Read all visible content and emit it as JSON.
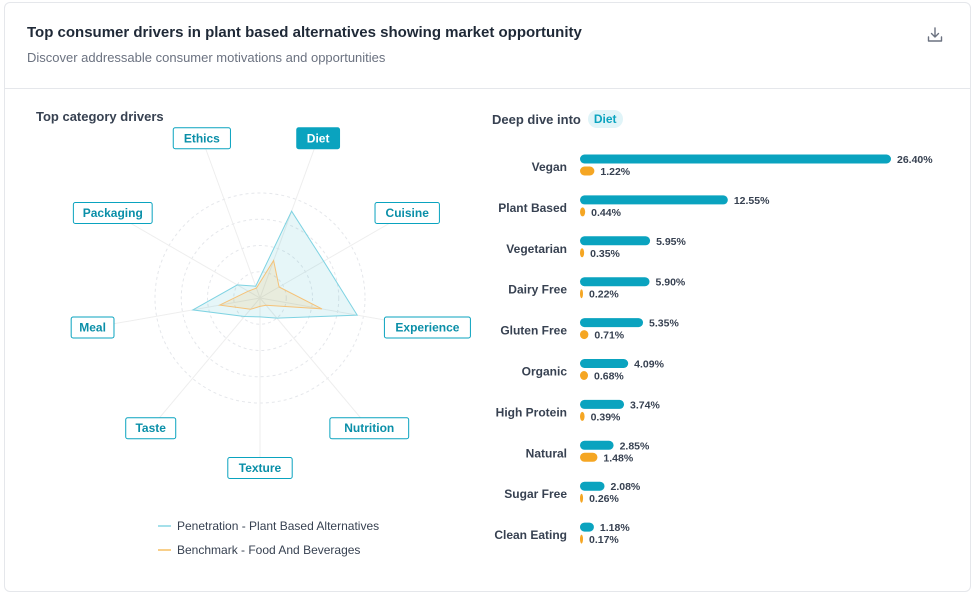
{
  "header": {
    "title": "Top consumer drivers in plant based alternatives showing market opportunity",
    "subtitle": "Discover addressable consumer motivations and opportunities"
  },
  "icons": {
    "download": "download-icon"
  },
  "colors": {
    "primary": "#0aa3bf",
    "benchmark": "#f5a623"
  },
  "chart_data": [
    {
      "type": "radar",
      "title": "Top category drivers",
      "axes": [
        "Diet",
        "Cuisine",
        "Experience",
        "Nutrition",
        "Texture",
        "Taste",
        "Meal",
        "Packaging",
        "Ethics"
      ],
      "selected_axis": "Diet",
      "rmax": 10,
      "series": [
        {
          "name": "Penetration - Plant Based Alternatives",
          "color": "#0aa3bf",
          "values": [
            8.8,
            7.0,
            9.4,
            2.5,
            1.8,
            2.3,
            6.5,
            2.5,
            1.2
          ]
        },
        {
          "name": "Benchmark - Food And Beverages",
          "color": "#f5a623",
          "values": [
            3.8,
            2.1,
            6.0,
            0.9,
            0.8,
            1.4,
            3.9,
            1.3,
            1.0
          ]
        }
      ]
    },
    {
      "type": "bar",
      "orientation": "horizontal",
      "title": "Deep dive into",
      "badge": "Diet",
      "categories": [
        "Vegan",
        "Plant Based",
        "Vegetarian",
        "Dairy Free",
        "Gluten Free",
        "Organic",
        "High Protein",
        "Natural",
        "Sugar Free",
        "Clean Eating"
      ],
      "series": [
        {
          "name": "Penetration - Plant Based Alternatives",
          "color": "#0aa3bf",
          "values": [
            26.4,
            12.55,
            5.95,
            5.9,
            5.35,
            4.09,
            3.74,
            2.85,
            2.08,
            1.18
          ]
        },
        {
          "name": "Benchmark - Food And Beverages",
          "color": "#f5a623",
          "values": [
            1.22,
            0.44,
            0.35,
            0.22,
            0.71,
            0.68,
            0.39,
            1.48,
            0.26,
            0.17
          ]
        }
      ],
      "value_format": "percent"
    }
  ]
}
